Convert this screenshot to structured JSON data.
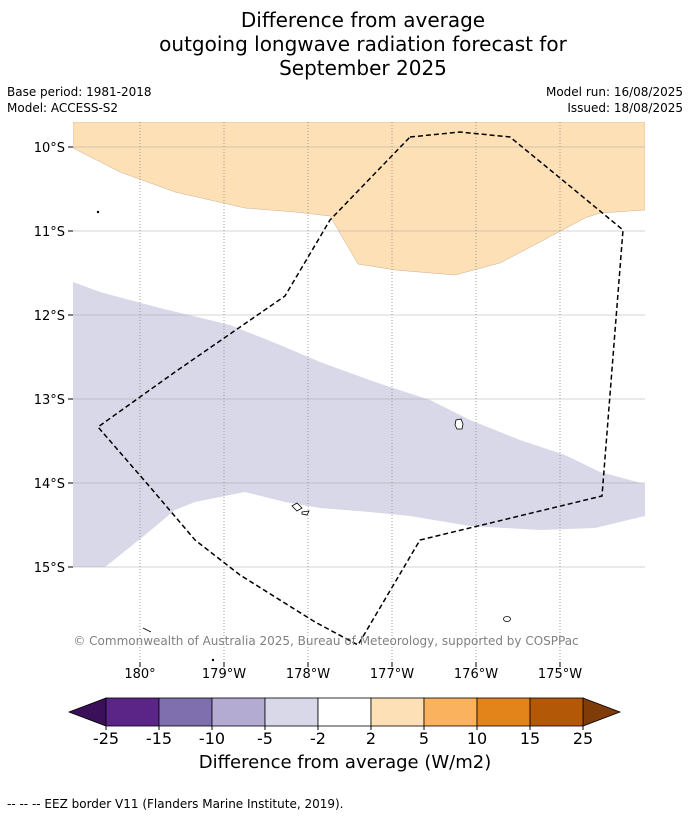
{
  "title": {
    "line1": "Difference from average",
    "line2": "outgoing longwave radiation forecast for",
    "line3": "September 2025"
  },
  "meta": {
    "base_period": "Base period: 1981-2018",
    "model": "Model: ACCESS-S2",
    "model_run": "Model run: 16/08/2025",
    "issued": "Issued: 18/08/2025"
  },
  "map": {
    "lat_labels": [
      "10°S",
      "11°S",
      "12°S",
      "13°S",
      "14°S",
      "15°S"
    ],
    "lon_labels": [
      "180°",
      "179°W",
      "178°W",
      "177°W",
      "176°W",
      "175°W"
    ],
    "copyright": "© Commonwealth of Australia 2025, Bureau of Meteorology, supported by COSPPac",
    "anomaly_colors": {
      "positive_light": "#fde0b6",
      "negative_light": "#d8d8e8"
    }
  },
  "colorbar": {
    "ticks": [
      "-25",
      "-15",
      "-10",
      "-5",
      "-2",
      "2",
      "5",
      "10",
      "15",
      "25"
    ],
    "colors": [
      "#5a2586",
      "#7f6fae",
      "#b3abd2",
      "#d8d8e8",
      "#ffffff",
      "#fde0b6",
      "#fbb25f",
      "#e2841a",
      "#b35807"
    ],
    "extend_low": "#3c0f5a",
    "extend_high": "#7f3b08",
    "label": "Difference from average (W/m2)"
  },
  "footer": "-- -- -- EEZ border V11 (Flanders Marine Institute, 2019)."
}
